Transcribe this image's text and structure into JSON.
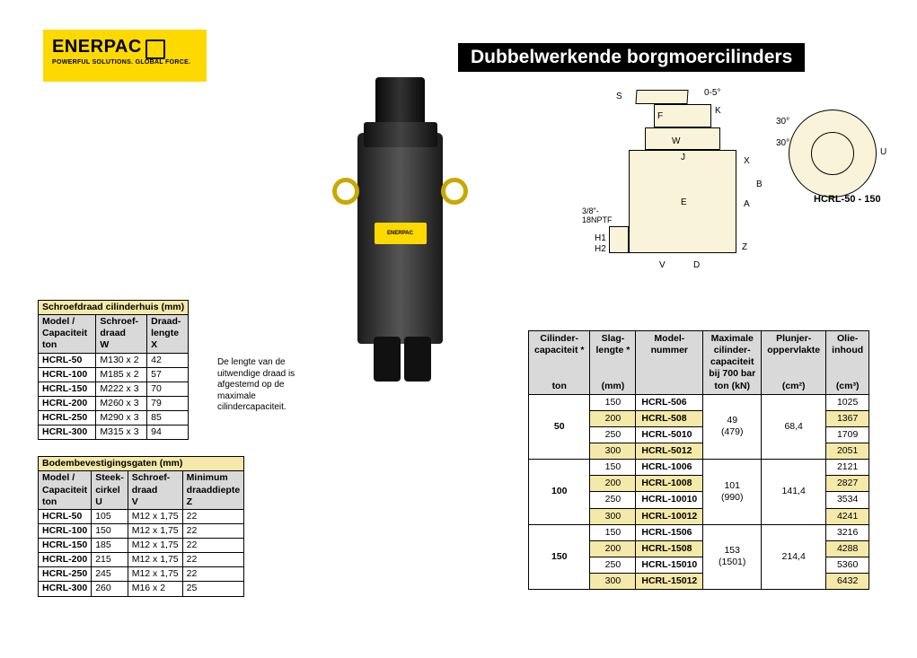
{
  "logo": {
    "brand": "ENERPAC",
    "tagline": "POWERFUL SOLUTIONS. GLOBAL FORCE."
  },
  "title": "Dubbelwerkende borgmoercilinders",
  "diagram": {
    "label_model": "HCRL-50 - 150",
    "label_port": "3/8\"-\n18NPTF",
    "dims": [
      "S",
      "F",
      "W",
      "J",
      "K",
      "E",
      "A",
      "B",
      "X",
      "Z",
      "D",
      "V",
      "H1",
      "H2",
      "U",
      "0-5°",
      "30°"
    ]
  },
  "note": "De lengte van de uitwendige draad is afgestemd op de maximale cilindercapaciteit.",
  "table_thread": {
    "title": "Schroefdraad cilinderhuis (mm)",
    "headers": [
      "Model /\nCapaciteit\nton",
      "Schroef-\ndraad\nW",
      "Draad-\nlengte\nX"
    ],
    "rows": [
      [
        "HCRL-50",
        "M130 x 2",
        "42"
      ],
      [
        "HCRL-100",
        "M185 x 2",
        "57"
      ],
      [
        "HCRL-150",
        "M222 x 3",
        "70"
      ],
      [
        "HCRL-200",
        "M260 x 3",
        "79"
      ],
      [
        "HCRL-250",
        "M290 x 3",
        "85"
      ],
      [
        "HCRL-300",
        "M315 x 3",
        "94"
      ]
    ]
  },
  "table_mount": {
    "title": "Bodembevestigingsgaten (mm)",
    "headers": [
      "Model /\nCapaciteit\nton",
      "Steek-\ncirkel\nU",
      "Schroef-\ndraad\nV",
      "Minimum\ndraaddiepte\nZ"
    ],
    "rows": [
      [
        "HCRL-50",
        "105",
        "M12 x 1,75",
        "22"
      ],
      [
        "HCRL-100",
        "150",
        "M12 x 1,75",
        "22"
      ],
      [
        "HCRL-150",
        "185",
        "M12 x 1,75",
        "22"
      ],
      [
        "HCRL-200",
        "215",
        "M12 x 1,75",
        "22"
      ],
      [
        "HCRL-250",
        "245",
        "M12 x 1,75",
        "22"
      ],
      [
        "HCRL-300",
        "260",
        "M16 x 2",
        "25"
      ]
    ]
  },
  "table_spec": {
    "headers": [
      "Cilinder-\ncapaciteit *\n\n\nton",
      "Slag-\nlengte *\n\n\n(mm)",
      "Model-\nnummer",
      "Maximale\ncilinder-\ncapaciteit\nbij 700 bar\nton (kN)",
      "Plunjer-\noppervlakte\n\n\n(cm²)",
      "Olie-\ninhoud\n\n\n(cm³)"
    ],
    "groups": [
      {
        "cap": "50",
        "max": "49\n(479)",
        "area": "68,4",
        "rows": [
          [
            "150",
            "HCRL-506",
            "1025"
          ],
          [
            "200",
            "HCRL-508",
            "1367"
          ],
          [
            "250",
            "HCRL-5010",
            "1709"
          ],
          [
            "300",
            "HCRL-5012",
            "2051"
          ]
        ]
      },
      {
        "cap": "100",
        "max": "101\n(990)",
        "area": "141,4",
        "rows": [
          [
            "150",
            "HCRL-1006",
            "2121"
          ],
          [
            "200",
            "HCRL-1008",
            "2827"
          ],
          [
            "250",
            "HCRL-10010",
            "3534"
          ],
          [
            "300",
            "HCRL-10012",
            "4241"
          ]
        ]
      },
      {
        "cap": "150",
        "max": "153\n(1501)",
        "area": "214,4",
        "rows": [
          [
            "150",
            "HCRL-1506",
            "3216"
          ],
          [
            "200",
            "HCRL-1508",
            "4288"
          ],
          [
            "250",
            "HCRL-15010",
            "5360"
          ],
          [
            "300",
            "HCRL-15012",
            "6432"
          ]
        ]
      }
    ]
  }
}
